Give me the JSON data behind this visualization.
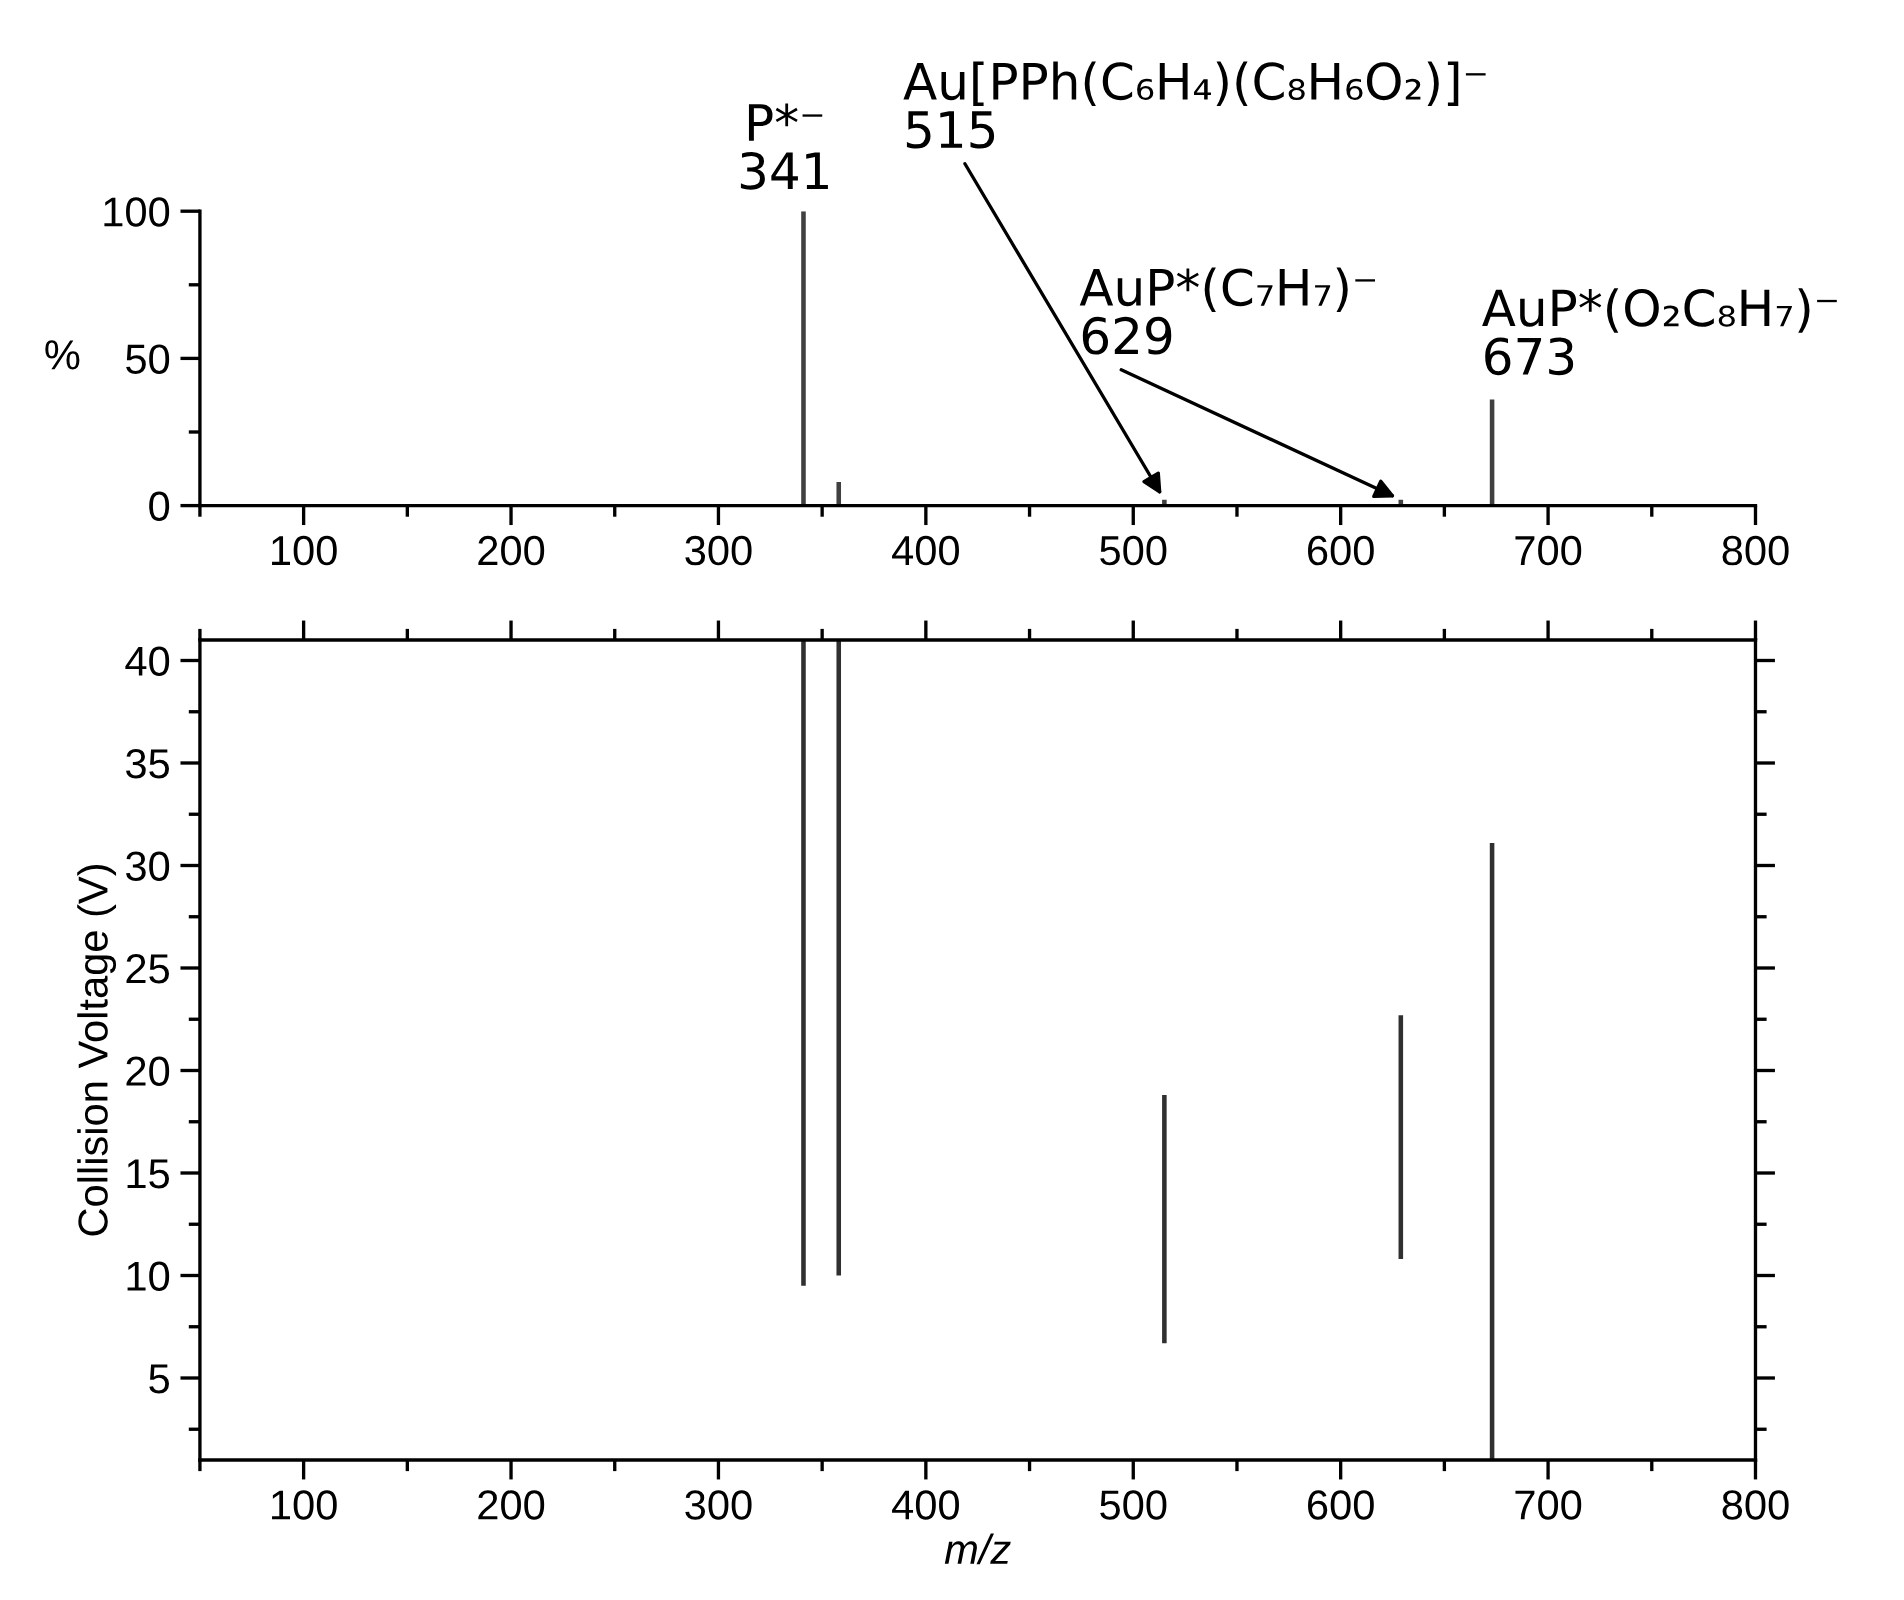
{
  "chart_data": [
    {
      "type": "bar",
      "ylabel": "%",
      "x": [
        341,
        358,
        515,
        629,
        673
      ],
      "values": [
        100,
        8,
        2,
        2,
        36
      ],
      "color": "#404040",
      "xlim": [
        50,
        800
      ],
      "xticks": [
        100,
        200,
        300,
        400,
        500,
        600,
        700,
        800
      ],
      "ylim": [
        0,
        100
      ],
      "yticks": [
        0,
        50,
        100
      ],
      "grid": false,
      "annotations": [
        {
          "text": "P*⁻\n341",
          "x": 341,
          "y": 100
        },
        {
          "text": "Au[PPh(C₆H₄)(C₈H₆O₂)]⁻\n515",
          "x": 515,
          "y": 2
        },
        {
          "text": "AuP*(C₇H₇)⁻\n629",
          "x": 629,
          "y": 2
        },
        {
          "text": "AuP*(O₂C₈H₇)⁻\n673",
          "x": 673,
          "y": 36
        }
      ]
    },
    {
      "type": "bar",
      "xlabel": "m/z",
      "ylabel": "Collision Voltage (V)",
      "x": [
        341,
        358,
        515,
        629,
        673
      ],
      "base": [
        9.5,
        10,
        6.7,
        10.8,
        1
      ],
      "values": [
        31.5,
        31,
        12.1,
        11.9,
        30.1
      ],
      "color": "#303030",
      "xlim": [
        50,
        800
      ],
      "xticks": [
        100,
        200,
        300,
        400,
        500,
        600,
        700,
        800
      ],
      "ylim": [
        1,
        41
      ],
      "yticks": [
        5,
        10,
        15,
        20,
        25,
        30,
        35,
        40
      ],
      "grid": false
    }
  ]
}
